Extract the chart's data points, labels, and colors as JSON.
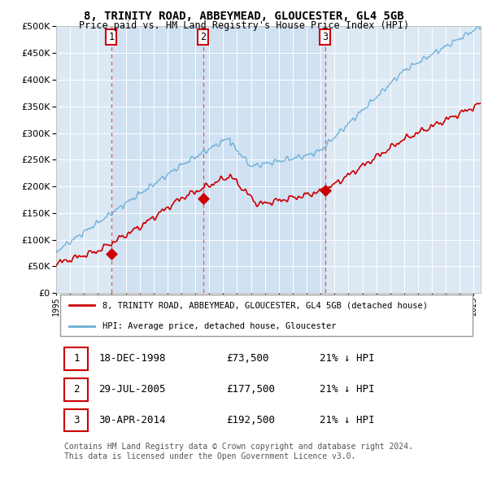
{
  "title_line1": "8, TRINITY ROAD, ABBEYMEAD, GLOUCESTER, GL4 5GB",
  "title_line2": "Price paid vs. HM Land Registry's House Price Index (HPI)",
  "ytick_vals": [
    0,
    50000,
    100000,
    150000,
    200000,
    250000,
    300000,
    350000,
    400000,
    450000,
    500000
  ],
  "xlim_start": 1995.0,
  "xlim_end": 2025.5,
  "ylim_min": 0,
  "ylim_max": 500000,
  "bg_color": "#dce9f5",
  "grid_color": "#ffffff",
  "sale_dates": [
    1998.96,
    2005.57,
    2014.33
  ],
  "sale_prices": [
    73500,
    177500,
    192500
  ],
  "sale_labels": [
    "1",
    "2",
    "3"
  ],
  "legend_entries": [
    "8, TRINITY ROAD, ABBEYMEAD, GLOUCESTER, GL4 5GB (detached house)",
    "HPI: Average price, detached house, Gloucester"
  ],
  "table_rows": [
    [
      "1",
      "18-DEC-1998",
      "£73,500",
      "21% ↓ HPI"
    ],
    [
      "2",
      "29-JUL-2005",
      "£177,500",
      "21% ↓ HPI"
    ],
    [
      "3",
      "30-APR-2014",
      "£192,500",
      "21% ↓ HPI"
    ]
  ],
  "footer": "Contains HM Land Registry data © Crown copyright and database right 2024.\nThis data is licensed under the Open Government Licence v3.0.",
  "hpi_color": "#6baed6",
  "price_color": "#cc0000",
  "marker_color": "#cc0000",
  "vline_color": "#dd4444"
}
